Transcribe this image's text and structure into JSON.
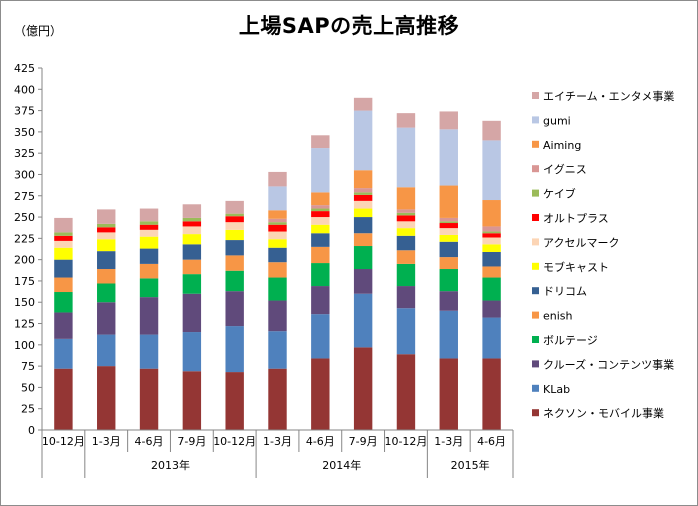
{
  "chart_data": {
    "type": "bar",
    "stacked": true,
    "title": "上場SAPの売上高推移",
    "ylabel": "（億円）",
    "ylim": [
      0,
      425
    ],
    "yticks": [
      0,
      25,
      50,
      75,
      100,
      125,
      150,
      175,
      200,
      225,
      250,
      275,
      300,
      325,
      350,
      375,
      400,
      425
    ],
    "categories": [
      "10-12月",
      "1-3月",
      "4-6月",
      "7-9月",
      "10-12月",
      "1-3月",
      "4-6月",
      "7-9月",
      "10-12月",
      "1-3月",
      "4-6月"
    ],
    "year_groups": [
      {
        "label": "",
        "start": 0,
        "end": 0
      },
      {
        "label": "2013年",
        "start": 1,
        "end": 4
      },
      {
        "label": "2014年",
        "start": 5,
        "end": 8
      },
      {
        "label": "2015年",
        "start": 9,
        "end": 10
      }
    ],
    "legend_position": "right",
    "grid": false,
    "series": [
      {
        "name": "ネクソン・モバイル事業",
        "color": "#943634",
        "values": [
          72,
          75,
          72,
          69,
          68,
          72,
          84,
          97,
          89,
          84,
          84
        ]
      },
      {
        "name": "KLab",
        "color": "#4f81bd",
        "values": [
          35,
          37,
          40,
          46,
          54,
          44,
          52,
          63,
          54,
          56,
          48
        ]
      },
      {
        "name": "クルーズ・コンテンツ事業",
        "color": "#604a7b",
        "values": [
          31,
          38,
          44,
          45,
          41,
          36,
          33,
          29,
          26,
          23,
          20
        ]
      },
      {
        "name": "ボルテージ",
        "color": "#00b050",
        "values": [
          24,
          22,
          22,
          23,
          24,
          27,
          27,
          27,
          26,
          26,
          27
        ]
      },
      {
        "name": "enish",
        "color": "#f79646",
        "values": [
          17,
          17,
          17,
          17,
          18,
          18,
          19,
          15,
          16,
          14,
          13
        ]
      },
      {
        "name": "ドリコム",
        "color": "#366092",
        "values": [
          21,
          21,
          18,
          18,
          18,
          17,
          16,
          19,
          17,
          18,
          17
        ]
      },
      {
        "name": "モブキャスト",
        "color": "#ffff00",
        "values": [
          14,
          14,
          14,
          12,
          12,
          10,
          10,
          10,
          9,
          8,
          9
        ]
      },
      {
        "name": "アクセルマーク",
        "color": "#fcd5b5",
        "values": [
          8,
          8,
          8,
          9,
          9,
          9,
          9,
          9,
          8,
          8,
          8
        ]
      },
      {
        "name": "オルトプラス",
        "color": "#ff0000",
        "values": [
          6,
          6,
          6,
          6,
          7,
          8,
          7,
          7,
          7,
          6,
          5
        ]
      },
      {
        "name": "ケイブ",
        "color": "#9bbb59",
        "values": [
          4,
          4,
          4,
          4,
          3,
          3,
          3,
          3,
          3,
          2,
          2
        ]
      },
      {
        "name": "イグニス",
        "color": "#d99694",
        "values": [
          0,
          0,
          0,
          0,
          0,
          4,
          4,
          5,
          4,
          4,
          6
        ]
      },
      {
        "name": "Aiming",
        "color": "#f79646",
        "values": [
          0,
          0,
          0,
          0,
          0,
          10,
          15,
          21,
          26,
          38,
          31
        ]
      },
      {
        "name": "gumi",
        "color": "#b9c7e4",
        "values": [
          0,
          0,
          0,
          0,
          0,
          28,
          52,
          70,
          70,
          66,
          70
        ]
      },
      {
        "name": "エイチーム・エンタメ事業",
        "color": "#d5a6a6",
        "values": [
          17,
          17,
          15,
          16,
          15,
          17,
          15,
          15,
          17,
          21,
          23
        ]
      }
    ]
  }
}
